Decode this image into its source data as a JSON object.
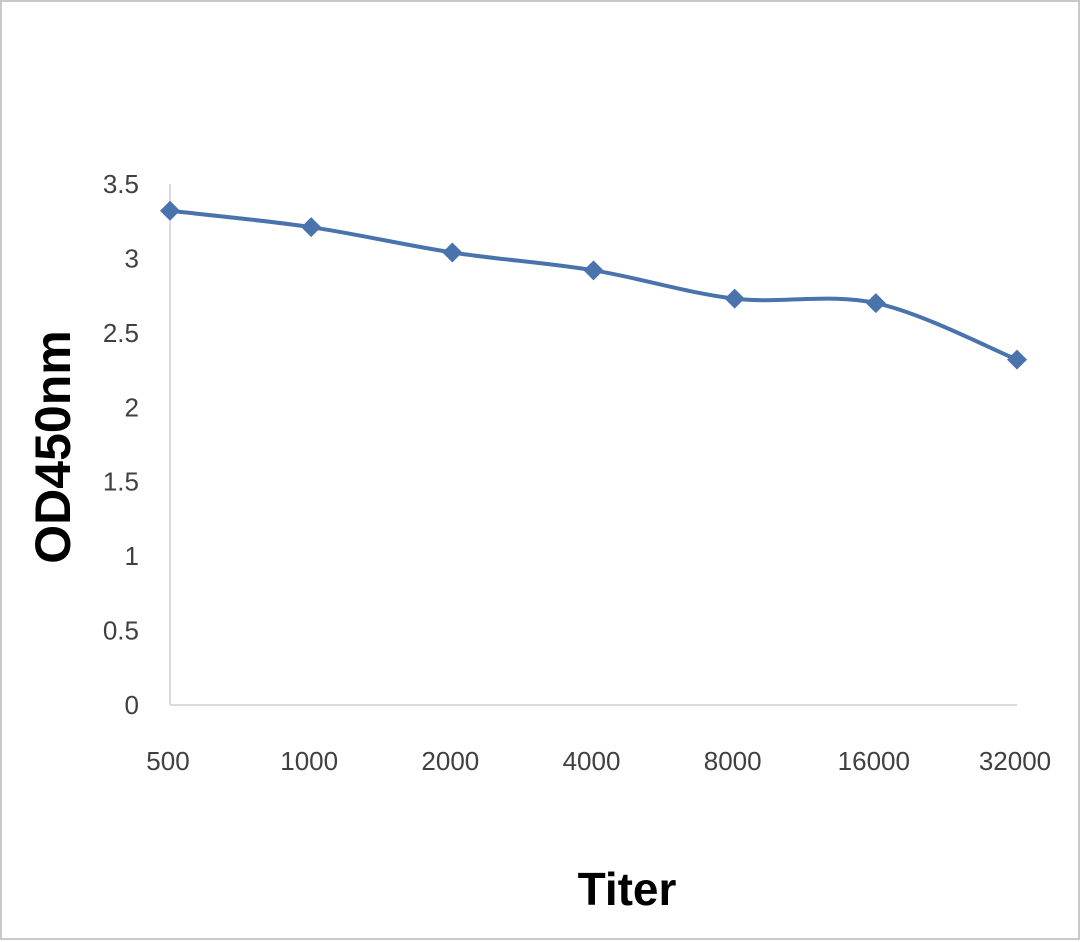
{
  "chart_data": {
    "type": "line",
    "title": "",
    "xlabel": "Titer",
    "ylabel": "OD450nm",
    "categories": [
      "500",
      "1000",
      "2000",
      "4000",
      "8000",
      "16000",
      "32000"
    ],
    "series": [
      {
        "values": [
          3.32,
          3.21,
          3.04,
          2.92,
          2.73,
          2.7,
          2.32
        ],
        "color": "#4a73ae"
      }
    ],
    "ylim": [
      0,
      3.5
    ],
    "yticks": [
      "0",
      "0.5",
      "1",
      "1.5",
      "2",
      "2.5",
      "3",
      "3.5"
    ],
    "grid": false,
    "legend": "none",
    "marker": "diamond",
    "smooth": true
  }
}
